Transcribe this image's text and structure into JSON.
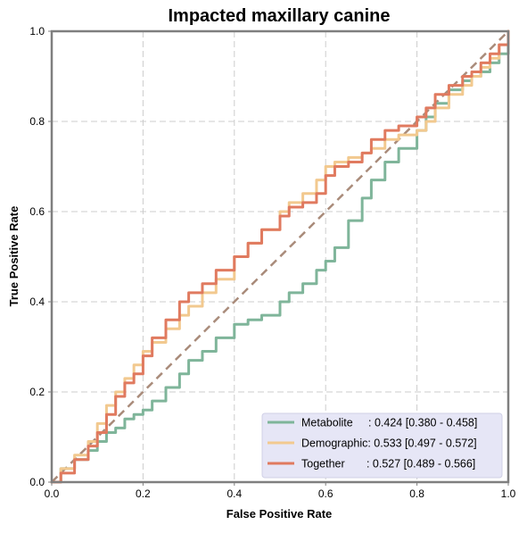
{
  "chart_data": {
    "type": "line",
    "title": "Impacted maxillary canine",
    "xlabel": "False Positive Rate",
    "ylabel": "True Positive Rate",
    "xlim": [
      0,
      1
    ],
    "ylim": [
      0,
      1
    ],
    "xticks": [
      "0.0",
      "0.2",
      "0.4",
      "0.6",
      "0.8",
      "1.0"
    ],
    "yticks": [
      "0.0",
      "0.2",
      "0.4",
      "0.6",
      "0.8",
      "1.0"
    ],
    "grid": true,
    "legend_position": "lower-right",
    "diagonal": {
      "color": "#a98b7a",
      "style": "dashed"
    },
    "series": [
      {
        "name": "Metabolite",
        "legend_text": "Metabolite     : 0.424 [0.380 - 0.458]",
        "color": "#7fb59a",
        "x": [
          0.0,
          0.02,
          0.05,
          0.08,
          0.1,
          0.12,
          0.14,
          0.16,
          0.18,
          0.2,
          0.22,
          0.25,
          0.28,
          0.3,
          0.33,
          0.36,
          0.4,
          0.43,
          0.46,
          0.5,
          0.52,
          0.55,
          0.58,
          0.6,
          0.62,
          0.65,
          0.68,
          0.7,
          0.73,
          0.76,
          0.8,
          0.82,
          0.84,
          0.87,
          0.9,
          0.92,
          0.94,
          0.96,
          0.98,
          1.0
        ],
        "y": [
          0.0,
          0.03,
          0.05,
          0.07,
          0.09,
          0.11,
          0.12,
          0.14,
          0.15,
          0.16,
          0.18,
          0.21,
          0.24,
          0.27,
          0.29,
          0.32,
          0.35,
          0.36,
          0.37,
          0.4,
          0.42,
          0.44,
          0.47,
          0.49,
          0.52,
          0.58,
          0.63,
          0.67,
          0.71,
          0.74,
          0.78,
          0.81,
          0.84,
          0.87,
          0.89,
          0.9,
          0.91,
          0.93,
          0.95,
          1.0
        ]
      },
      {
        "name": "Demographic",
        "legend_text": "Demographic: 0.533 [0.497 - 0.572]",
        "color": "#f2c98f",
        "x": [
          0.0,
          0.02,
          0.05,
          0.08,
          0.1,
          0.12,
          0.14,
          0.16,
          0.18,
          0.2,
          0.22,
          0.25,
          0.28,
          0.3,
          0.33,
          0.36,
          0.4,
          0.43,
          0.46,
          0.5,
          0.52,
          0.55,
          0.58,
          0.6,
          0.62,
          0.65,
          0.68,
          0.7,
          0.73,
          0.76,
          0.8,
          0.82,
          0.84,
          0.87,
          0.9,
          0.92,
          0.94,
          0.96,
          0.98,
          1.0
        ],
        "y": [
          0.0,
          0.03,
          0.06,
          0.09,
          0.13,
          0.17,
          0.2,
          0.23,
          0.26,
          0.29,
          0.31,
          0.34,
          0.37,
          0.39,
          0.42,
          0.45,
          0.5,
          0.53,
          0.56,
          0.6,
          0.62,
          0.64,
          0.67,
          0.7,
          0.71,
          0.72,
          0.73,
          0.74,
          0.76,
          0.77,
          0.78,
          0.8,
          0.83,
          0.86,
          0.88,
          0.9,
          0.92,
          0.94,
          0.97,
          1.0
        ]
      },
      {
        "name": "Together",
        "legend_text": "Together       : 0.527 [0.489 - 0.566]",
        "color": "#e07a5f",
        "x": [
          0.0,
          0.02,
          0.05,
          0.08,
          0.1,
          0.12,
          0.14,
          0.16,
          0.18,
          0.2,
          0.22,
          0.25,
          0.28,
          0.3,
          0.33,
          0.36,
          0.4,
          0.43,
          0.46,
          0.5,
          0.52,
          0.55,
          0.58,
          0.6,
          0.62,
          0.65,
          0.68,
          0.7,
          0.73,
          0.76,
          0.8,
          0.82,
          0.84,
          0.87,
          0.9,
          0.92,
          0.94,
          0.96,
          0.98,
          1.0
        ],
        "y": [
          0.0,
          0.02,
          0.05,
          0.08,
          0.11,
          0.15,
          0.19,
          0.22,
          0.24,
          0.28,
          0.32,
          0.36,
          0.4,
          0.42,
          0.44,
          0.47,
          0.5,
          0.53,
          0.56,
          0.59,
          0.61,
          0.62,
          0.64,
          0.68,
          0.7,
          0.71,
          0.73,
          0.76,
          0.78,
          0.79,
          0.81,
          0.83,
          0.86,
          0.88,
          0.9,
          0.91,
          0.93,
          0.95,
          0.97,
          1.0
        ]
      }
    ]
  }
}
